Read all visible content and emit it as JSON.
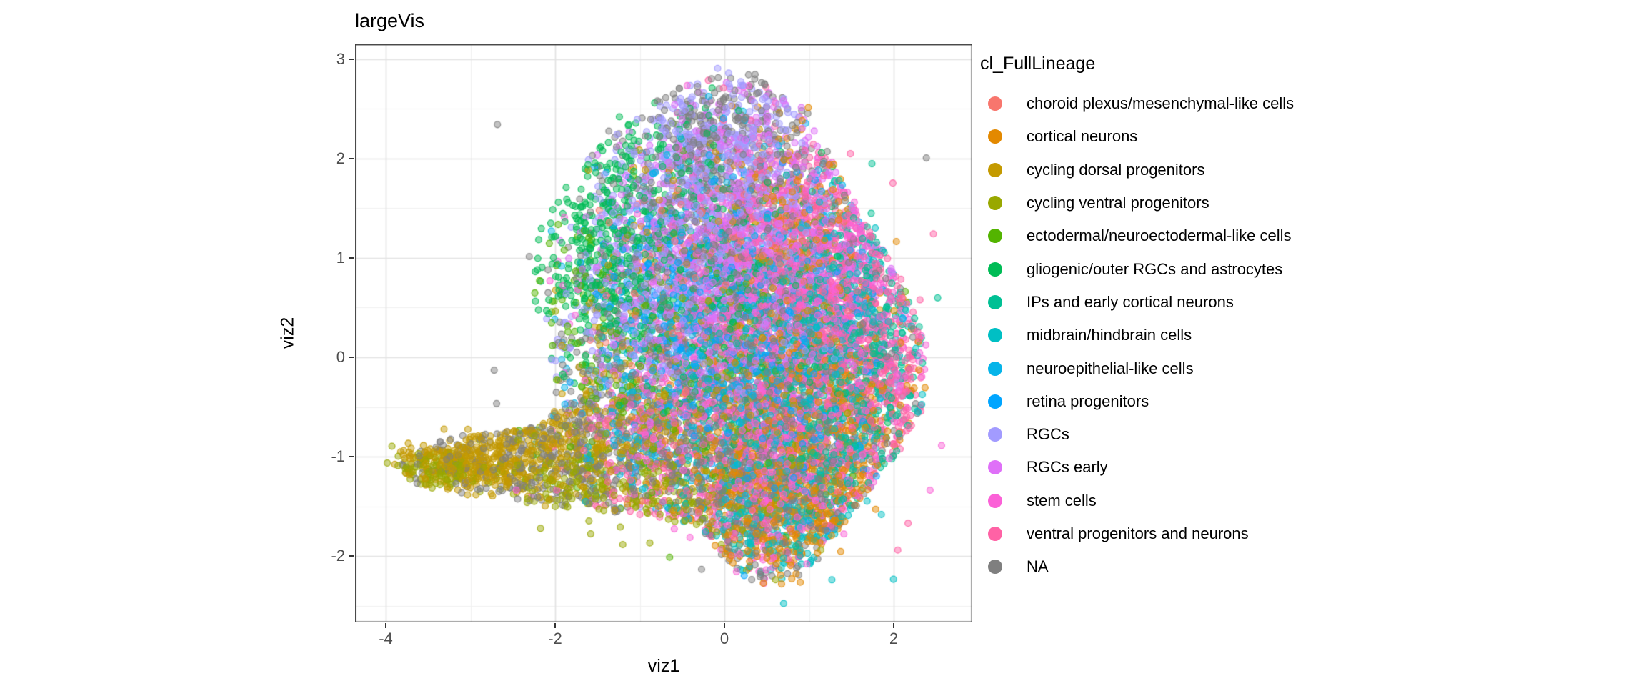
{
  "title": "largeVis",
  "chart_data": {
    "type": "scatter",
    "title": "largeVis",
    "xlabel": "viz1",
    "ylabel": "viz2",
    "legend_title": "cl_FullLineage",
    "xlim": [
      -4.363,
      2.928
    ],
    "ylim": [
      -2.669,
      3.151
    ],
    "x_ticks": [
      -4,
      -2,
      0,
      2
    ],
    "y_ticks": [
      -2,
      -1,
      0,
      1,
      2,
      3
    ],
    "x_minor_breaks": [
      -3,
      -1,
      1
    ],
    "y_minor_breaks": [
      -2.5,
      -1.5,
      -0.5,
      0.5,
      1.5,
      2.5
    ],
    "grid": true,
    "legend_position": "right",
    "point_radius_px": 4.4,
    "point_fill_alpha": 0.47,
    "point_stroke_alpha": 0.8,
    "seed": 1337,
    "outline_polygon": [
      [
        0.0,
        2.95
      ],
      [
        0.65,
        2.78
      ],
      [
        1.0,
        2.45
      ],
      [
        1.4,
        1.75
      ],
      [
        1.8,
        1.2
      ],
      [
        2.15,
        0.65
      ],
      [
        2.4,
        0.1
      ],
      [
        2.35,
        -0.5
      ],
      [
        2.05,
        -0.95
      ],
      [
        1.65,
        -1.4
      ],
      [
        1.3,
        -1.8
      ],
      [
        1.0,
        -2.15
      ],
      [
        0.6,
        -2.32
      ],
      [
        0.25,
        -2.28
      ],
      [
        0.0,
        -2.05
      ],
      [
        -0.3,
        -1.7
      ],
      [
        -0.8,
        -1.62
      ],
      [
        -1.4,
        -1.55
      ],
      [
        -2.1,
        -1.5
      ],
      [
        -2.9,
        -1.42
      ],
      [
        -3.6,
        -1.3
      ],
      [
        -3.93,
        -1.1
      ],
      [
        -3.85,
        -0.95
      ],
      [
        -3.3,
        -0.82
      ],
      [
        -2.6,
        -0.75
      ],
      [
        -2.15,
        -0.68
      ],
      [
        -1.95,
        -0.4
      ],
      [
        -2.05,
        0.0
      ],
      [
        -2.25,
        0.55
      ],
      [
        -2.32,
        1.05
      ],
      [
        -2.0,
        1.6
      ],
      [
        -1.45,
        2.15
      ],
      [
        -0.75,
        2.62
      ]
    ],
    "series": [
      {
        "name": "choroid plexus/mesenchymal-like cells",
        "color": "#F8766D",
        "clusters": [
          [
            -0.2,
            1.35,
            0.45,
            0.35,
            60
          ],
          [
            0.5,
            0.8,
            0.8,
            0.7,
            50
          ],
          [
            -0.9,
            0.5,
            0.4,
            0.5,
            30
          ]
        ]
      },
      {
        "name": "cortical neurons",
        "color": "#E38900",
        "clusters": [
          [
            0.75,
            -1.45,
            0.6,
            0.42,
            520
          ],
          [
            1.25,
            -0.5,
            0.55,
            0.55,
            260
          ],
          [
            0.9,
            0.4,
            0.7,
            0.8,
            180
          ],
          [
            0.8,
            1.5,
            0.45,
            0.4,
            90
          ],
          [
            0.0,
            -0.9,
            0.6,
            0.5,
            100
          ]
        ]
      },
      {
        "name": "cycling dorsal progenitors",
        "color": "#C49A00",
        "clusters": [
          [
            -3.1,
            -1.05,
            0.42,
            0.16,
            280
          ],
          [
            -2.2,
            -0.95,
            0.5,
            0.28,
            220
          ],
          [
            -1.2,
            -0.7,
            0.6,
            0.45,
            160
          ],
          [
            -0.3,
            -0.2,
            0.9,
            0.8,
            120
          ],
          [
            0.3,
            1.2,
            0.7,
            0.6,
            100
          ]
        ]
      },
      {
        "name": "cycling ventral progenitors",
        "color": "#99A800",
        "clusters": [
          [
            -3.4,
            -1.15,
            0.3,
            0.14,
            120
          ],
          [
            -1.9,
            -1.25,
            0.6,
            0.3,
            160
          ],
          [
            -0.7,
            -1.5,
            0.7,
            0.35,
            140
          ],
          [
            -0.2,
            -0.4,
            0.8,
            0.6,
            100
          ]
        ]
      },
      {
        "name": "ectodermal/neuroectodermal-like cells",
        "color": "#53B400",
        "clusters": [
          [
            -0.9,
            -0.6,
            0.7,
            0.6,
            90
          ],
          [
            -0.2,
            0.3,
            0.9,
            0.9,
            80
          ],
          [
            -1.6,
            0.3,
            0.4,
            0.5,
            60
          ]
        ]
      },
      {
        "name": "gliogenic/outer RGCs and astrocytes",
        "color": "#00BC56",
        "clusters": [
          [
            -1.45,
            0.9,
            0.42,
            0.55,
            300
          ],
          [
            -0.9,
            1.7,
            0.45,
            0.45,
            170
          ],
          [
            -0.3,
            0.6,
            0.7,
            0.8,
            170
          ],
          [
            0.5,
            0.1,
            0.8,
            0.9,
            140
          ]
        ]
      },
      {
        "name": "IPs and early cortical neurons",
        "color": "#00C094",
        "clusters": [
          [
            1.45,
            0.5,
            0.42,
            0.6,
            230
          ],
          [
            1.2,
            -0.8,
            0.5,
            0.5,
            180
          ],
          [
            0.5,
            0.2,
            0.8,
            0.8,
            130
          ],
          [
            1.9,
            -0.1,
            0.25,
            0.55,
            80
          ]
        ]
      },
      {
        "name": "midbrain/hindbrain cells",
        "color": "#00BFC4",
        "clusters": [
          [
            0.6,
            -0.4,
            0.8,
            0.8,
            380
          ],
          [
            0.6,
            -1.6,
            0.55,
            0.38,
            260
          ],
          [
            1.3,
            0.4,
            0.5,
            0.6,
            190
          ]
        ]
      },
      {
        "name": "neuroepithelial-like cells",
        "color": "#06B4E9",
        "clusters": [
          [
            0.0,
            0.35,
            0.8,
            0.8,
            320
          ],
          [
            -1.0,
            -0.5,
            0.55,
            0.5,
            170
          ],
          [
            0.9,
            0.9,
            0.6,
            0.6,
            130
          ]
        ]
      },
      {
        "name": "retina progenitors",
        "color": "#00A5FF",
        "clusters": [
          [
            0.2,
            0.25,
            0.7,
            0.8,
            320
          ],
          [
            -0.6,
            0.9,
            0.5,
            0.5,
            120
          ],
          [
            0.9,
            -0.6,
            0.5,
            0.5,
            80
          ]
        ]
      },
      {
        "name": "RGCs",
        "color": "#A29BFF",
        "clusters": [
          [
            0.0,
            2.1,
            0.55,
            0.42,
            300
          ],
          [
            -0.6,
            1.2,
            0.6,
            0.6,
            280
          ],
          [
            0.3,
            0.5,
            0.8,
            0.8,
            220
          ],
          [
            -1.3,
            0.4,
            0.45,
            0.6,
            120
          ]
        ]
      },
      {
        "name": "RGCs early",
        "color": "#DF70F8",
        "clusters": [
          [
            0.1,
            1.6,
            0.7,
            0.6,
            420
          ],
          [
            -0.4,
            0.6,
            0.7,
            0.7,
            300
          ],
          [
            0.6,
            0.9,
            0.6,
            0.6,
            230
          ]
        ]
      },
      {
        "name": "stem cells",
        "color": "#FB61D7",
        "clusters": [
          [
            0.8,
            0.3,
            0.8,
            0.9,
            650
          ],
          [
            0.1,
            -0.1,
            0.9,
            0.9,
            420
          ],
          [
            0.7,
            -1.3,
            0.65,
            0.5,
            280
          ],
          [
            1.5,
            0.8,
            0.45,
            0.5,
            200
          ]
        ]
      },
      {
        "name": "ventral progenitors and neurons",
        "color": "#FF62A5",
        "clusters": [
          [
            1.4,
            0.2,
            0.5,
            0.9,
            380
          ],
          [
            0.9,
            1.4,
            0.5,
            0.5,
            250
          ],
          [
            0.3,
            -0.6,
            0.9,
            0.7,
            250
          ],
          [
            2.0,
            -0.3,
            0.28,
            0.6,
            130
          ],
          [
            -0.9,
            -1.0,
            0.5,
            0.4,
            140
          ]
        ]
      },
      {
        "name": "NA",
        "color": "#7F7F7F",
        "clusters": [
          [
            0.0,
            0.9,
            1.0,
            0.9,
            500
          ],
          [
            0.5,
            -1.3,
            0.8,
            0.55,
            380
          ],
          [
            -1.6,
            -0.9,
            0.7,
            0.45,
            280
          ],
          [
            0.0,
            2.3,
            0.6,
            0.38,
            220
          ],
          [
            0.2,
            -0.1,
            1.3,
            1.1,
            380
          ],
          [
            -2.8,
            -1.0,
            0.6,
            0.25,
            140
          ]
        ]
      }
    ]
  },
  "colors": {
    "background": "#FFFFFF",
    "panel_background": "#FFFFFF",
    "panel_border": "#3C3C3C",
    "grid_major": "#E3E3E3",
    "grid_minor": "#F1F1F1",
    "tick_mark": "#343434",
    "tick_label_text": "#4D4D4D",
    "axis_title_text": "#000000",
    "title_text": "#000000",
    "legend_text": "#000000"
  }
}
